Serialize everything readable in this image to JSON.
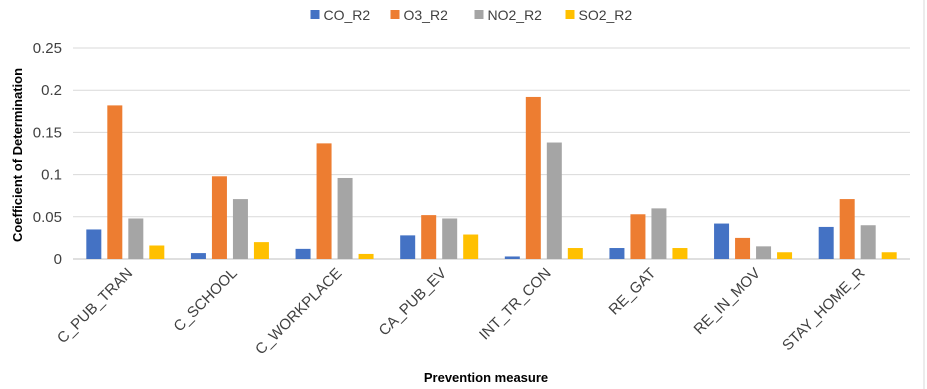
{
  "chart_data": {
    "type": "bar",
    "title": "",
    "xlabel": "Prevention measure",
    "ylabel": "Coefficient of Determination",
    "categories": [
      "C_PUB_TRAN",
      "C_SCHOOL",
      "C_WORKPLACE",
      "CA_PUB_EV",
      "INT_TR_CON",
      "RE_GAT",
      "RE_IN_MOV",
      "STAY_HOME_R"
    ],
    "series": [
      {
        "name": "CO_R2",
        "color": "#4472C4",
        "values": [
          0.035,
          0.007,
          0.012,
          0.028,
          0.003,
          0.013,
          0.042,
          0.038
        ]
      },
      {
        "name": "O3_R2",
        "color": "#ED7D31",
        "values": [
          0.182,
          0.098,
          0.137,
          0.052,
          0.192,
          0.053,
          0.025,
          0.071
        ]
      },
      {
        "name": "NO2_R2",
        "color": "#A5A5A5",
        "values": [
          0.048,
          0.071,
          0.096,
          0.048,
          0.138,
          0.06,
          0.015,
          0.04
        ]
      },
      {
        "name": "SO2_R2",
        "color": "#FFC000",
        "values": [
          0.016,
          0.02,
          0.006,
          0.029,
          0.013,
          0.013,
          0.008,
          0.008
        ]
      }
    ],
    "yticks": [
      "0",
      "0.05",
      "0.1",
      "0.15",
      "0.2",
      "0.25"
    ],
    "ylim": [
      0,
      0.25
    ],
    "grid": true,
    "legend_position": "top"
  }
}
